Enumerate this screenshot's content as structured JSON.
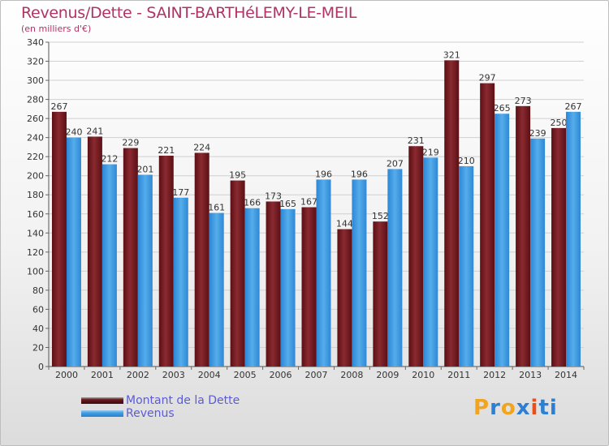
{
  "header": {
    "title": "Revenus/Dette - SAINT-BARTHéLEMY-LE-MEIL",
    "subtitle": "(en milliers d'€)"
  },
  "colors": {
    "dette": "#7a1f25",
    "revenus": "#3f9fe6",
    "grid": "#d0d0d0",
    "axis_text": "#333333",
    "label_text": "#333333"
  },
  "legend": {
    "items": [
      {
        "label": "Montant de la Dette",
        "color": "#6b1a1f"
      },
      {
        "label": "Revenus",
        "color": "#3f9fe6"
      }
    ]
  },
  "logo": {
    "text": "Proxiti",
    "letter_colors": [
      "#f2a41c",
      "#2d7fd3",
      "#f2a41c",
      "#2d7fd3",
      "#e94e1b",
      "#2d7fd3",
      "#2d7fd3"
    ]
  },
  "chart_data": {
    "type": "bar",
    "categories": [
      "2000",
      "2001",
      "2002",
      "2003",
      "2004",
      "2005",
      "2006",
      "2007",
      "2008",
      "2009",
      "2010",
      "2011",
      "2012",
      "2013",
      "2014"
    ],
    "series": [
      {
        "name": "Montant de la Dette",
        "values": [
          267,
          241,
          229,
          221,
          224,
          195,
          173,
          167,
          144,
          152,
          231,
          321,
          297,
          273,
          250
        ]
      },
      {
        "name": "Revenus",
        "values": [
          240,
          212,
          201,
          177,
          161,
          166,
          165,
          196,
          196,
          207,
          219,
          210,
          265,
          239,
          267
        ]
      }
    ],
    "ylim": [
      0,
      340
    ],
    "ytick_step": 20,
    "grid": true,
    "legend_position": "bottom-left"
  }
}
